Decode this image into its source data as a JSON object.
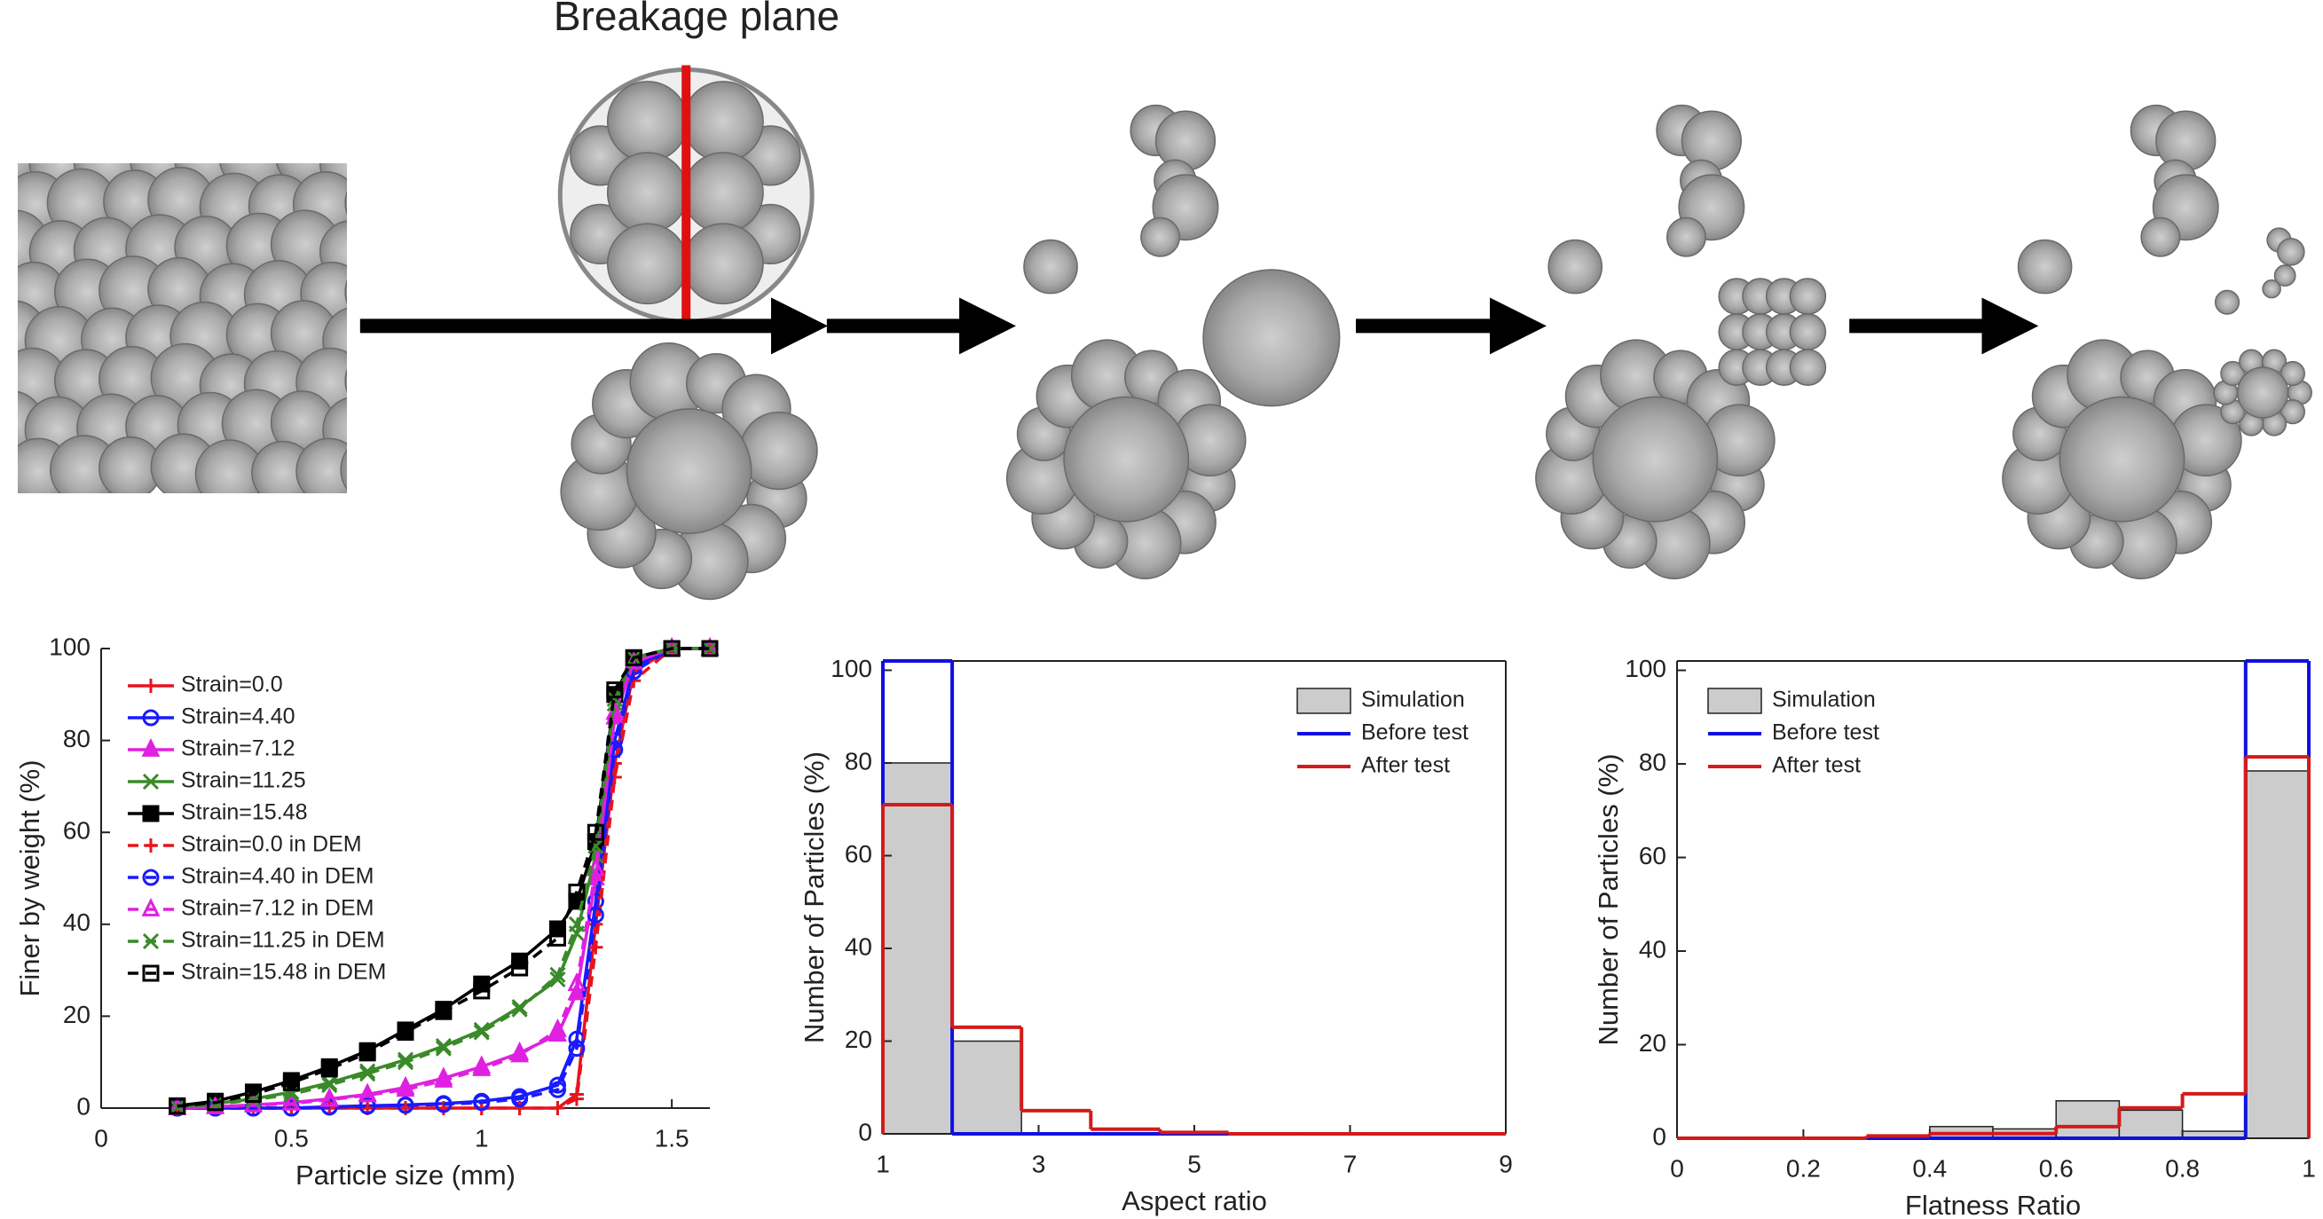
{
  "header": {
    "title": "Breakage plane"
  },
  "chart_data": [
    {
      "type": "line",
      "xlabel": "Particle size (mm)",
      "ylabel": "Finer by weight (%)",
      "x": [
        0.2,
        0.3,
        0.4,
        0.5,
        0.6,
        0.7,
        0.8,
        0.9,
        1.0,
        1.1,
        1.2,
        1.25,
        1.3,
        1.35,
        1.4,
        1.5,
        1.6
      ],
      "xlim": [
        0,
        1.6
      ],
      "xticks": [
        0,
        0.5,
        1,
        1.5
      ],
      "ylim": [
        0,
        100
      ],
      "yticks": [
        0,
        20,
        40,
        60,
        80,
        100
      ],
      "legend": "upper left",
      "series": [
        {
          "name": "Strain=0.0",
          "color": "#e6141e",
          "marker": "+",
          "dash": false,
          "filled": true,
          "values": [
            0,
            0,
            0,
            0,
            0,
            0,
            0,
            0,
            0,
            0,
            0,
            3,
            40,
            75,
            95,
            100,
            100
          ]
        },
        {
          "name": "Strain=4.40",
          "color": "#1a1aff",
          "marker": "o",
          "dash": false,
          "filled": false,
          "values": [
            0,
            0,
            0,
            0,
            0.3,
            0.5,
            0.7,
            1,
            1.5,
            2.5,
            5,
            15,
            45,
            80,
            96,
            100,
            100
          ]
        },
        {
          "name": "Strain=7.12",
          "color": "#e020e0",
          "marker": "^",
          "dash": false,
          "filled": true,
          "values": [
            0,
            0.3,
            0.7,
            1.2,
            2,
            3,
            4.5,
            6.5,
            9,
            12,
            16,
            25,
            50,
            85,
            97,
            100,
            100
          ]
        },
        {
          "name": "Strain=11.25",
          "color": "#3a8a2a",
          "marker": "x",
          "dash": false,
          "filled": true,
          "values": [
            0.3,
            1,
            2,
            3.5,
            5.5,
            8,
            10.5,
            13.5,
            17,
            22,
            28,
            38,
            55,
            88,
            98,
            100,
            100
          ]
        },
        {
          "name": "Strain=15.48",
          "color": "#000000",
          "marker": "s",
          "dash": false,
          "filled": true,
          "values": [
            0.5,
            1.5,
            3.5,
            6,
            9,
            12.5,
            17,
            21.5,
            27,
            32,
            39,
            45,
            58,
            90,
            98,
            100,
            100
          ]
        },
        {
          "name": "Strain=0.0 in DEM",
          "color": "#e6141e",
          "marker": "+",
          "dash": true,
          "filled": false,
          "values": [
            0,
            0,
            0,
            0,
            0,
            0,
            0,
            0,
            0,
            0,
            0,
            2,
            35,
            72,
            93,
            100,
            100
          ]
        },
        {
          "name": "Strain=4.40 in DEM",
          "color": "#1a1aff",
          "marker": "o",
          "dash": true,
          "filled": false,
          "values": [
            0,
            0,
            0,
            0,
            0.2,
            0.4,
            0.6,
            0.8,
            1.2,
            2,
            4,
            13,
            42,
            78,
            95,
            100,
            100
          ]
        },
        {
          "name": "Strain=7.12 in DEM",
          "color": "#e020e0",
          "marker": "^",
          "dash": true,
          "filled": false,
          "values": [
            0,
            0.2,
            0.6,
            1,
            1.8,
            2.8,
            4,
            6,
            8.5,
            11.5,
            17,
            27,
            52,
            86,
            97,
            100,
            100
          ]
        },
        {
          "name": "Strain=11.25 in DEM",
          "color": "#3a8a2a",
          "marker": "x",
          "dash": true,
          "filled": false,
          "values": [
            0.2,
            0.8,
            1.8,
            3,
            5,
            7.5,
            10,
            13,
            16.5,
            21.5,
            29,
            40,
            57,
            89,
            98,
            100,
            100
          ]
        },
        {
          "name": "Strain=15.48 in DEM",
          "color": "#000000",
          "marker": "s",
          "dash": true,
          "filled": false,
          "values": [
            0.4,
            1.2,
            3,
            5.5,
            8.5,
            12,
            16.5,
            21,
            25.5,
            30.5,
            37,
            47,
            60,
            91,
            98,
            100,
            100
          ]
        }
      ]
    },
    {
      "type": "histogram",
      "xlabel": "Aspect ratio",
      "ylabel": "Number of Particles (%)",
      "bins": [
        1,
        1.89,
        2.78,
        3.67,
        4.56,
        5.44,
        6.33,
        7.22,
        8.11,
        9
      ],
      "xlim": [
        1,
        9
      ],
      "xticks": [
        1,
        3,
        5,
        7,
        9
      ],
      "ylim": [
        0,
        102
      ],
      "yticks": [
        0,
        20,
        40,
        60,
        80,
        100
      ],
      "legend": "upper right",
      "box": true,
      "series": [
        {
          "name": "Simulation",
          "color": "#cccccc",
          "style": "bar",
          "values": [
            80,
            20,
            0,
            0,
            0,
            0,
            0,
            0,
            0
          ]
        },
        {
          "name": "Before test",
          "color": "#1010e0",
          "style": "step",
          "values": [
            102,
            0,
            0,
            0,
            0,
            0,
            0,
            0,
            0
          ]
        },
        {
          "name": "After test",
          "color": "#d41a1a",
          "style": "step",
          "values": [
            71,
            23,
            5,
            1,
            0.3,
            0,
            0,
            0,
            0
          ]
        }
      ]
    },
    {
      "type": "histogram",
      "xlabel": "Flatness Ratio",
      "ylabel": "Number of Particles (%)",
      "bins": [
        0,
        0.1,
        0.2,
        0.3,
        0.4,
        0.5,
        0.6,
        0.7,
        0.8,
        0.9,
        1
      ],
      "xlim": [
        0,
        1
      ],
      "xticks": [
        0,
        0.2,
        0.4,
        0.6,
        0.8,
        1
      ],
      "ylim": [
        0,
        102
      ],
      "yticks": [
        0,
        20,
        40,
        60,
        80,
        100
      ],
      "legend": "upper left",
      "box": true,
      "series": [
        {
          "name": "Simulation",
          "color": "#cccccc",
          "style": "bar",
          "values": [
            0,
            0,
            0,
            0,
            2.5,
            2,
            8,
            6,
            1.5,
            78.5
          ]
        },
        {
          "name": "Before test",
          "color": "#1010e0",
          "style": "step",
          "values": [
            0,
            0,
            0,
            0,
            0,
            0,
            0,
            0,
            0,
            102
          ]
        },
        {
          "name": "After test",
          "color": "#d41a1a",
          "style": "step",
          "values": [
            0,
            0,
            0,
            0.5,
            1,
            1,
            2.5,
            6.5,
            9.5,
            81.5
          ]
        }
      ]
    }
  ]
}
